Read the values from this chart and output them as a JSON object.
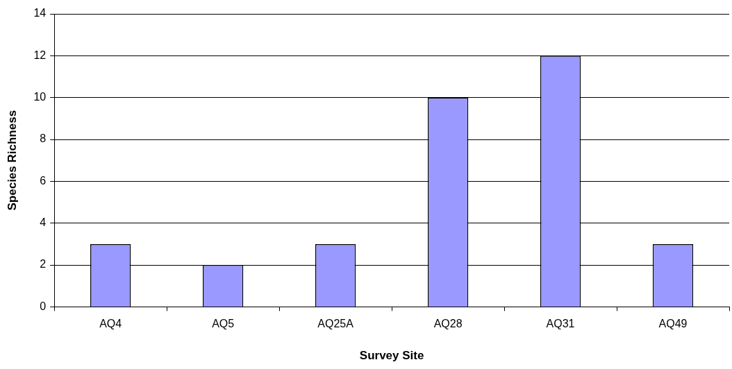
{
  "chart_data": {
    "type": "bar",
    "xlabel": "Survey Site",
    "ylabel": "Species Richness",
    "categories": [
      "AQ4",
      "AQ5",
      "AQ25A",
      "AQ28",
      "AQ31",
      "AQ49"
    ],
    "values": [
      3,
      2,
      3,
      10,
      12,
      3
    ],
    "color": "#9999ff",
    "ylim": [
      0,
      14
    ],
    "yticks": [
      0,
      2,
      4,
      6,
      8,
      10,
      12,
      14
    ],
    "grid": "y",
    "legend": false
  }
}
